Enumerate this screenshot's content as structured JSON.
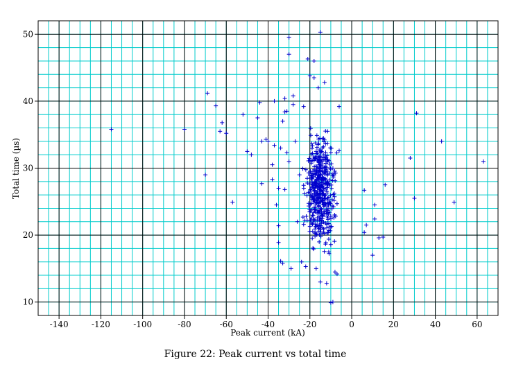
{
  "chart_data": {
    "type": "scatter",
    "title": "",
    "caption": "Figure 22: Peak current vs total time",
    "xlabel": "Peak current (kA)",
    "ylabel": "Total time (µs)",
    "xlim": [
      -150,
      70
    ],
    "ylim": [
      8,
      52
    ],
    "x_ticks": [
      -140,
      -120,
      -100,
      -80,
      -60,
      -40,
      -20,
      0,
      20,
      40,
      60
    ],
    "y_ticks": [
      10,
      20,
      30,
      40,
      50
    ],
    "x_minor_step": 5,
    "y_minor_step": 2,
    "grid": true,
    "marker": "+",
    "colors": {
      "marker": "#0000cc",
      "minor_grid": "#00cccc",
      "major_grid": "#000000",
      "axes": "#000000"
    },
    "cluster": {
      "description_points": "dense band approx. x from -25 to -5 kA, y from 15 to 38 µs",
      "x_range": [
        -25,
        -5
      ],
      "y_range": [
        15,
        38
      ],
      "count": 500
    },
    "points": [
      [
        -115,
        35.8
      ],
      [
        -80,
        35.8
      ],
      [
        -70,
        29
      ],
      [
        -69,
        41.2
      ],
      [
        -65,
        39.3
      ],
      [
        -63,
        35.5
      ],
      [
        -62,
        36.8
      ],
      [
        -60,
        35.2
      ],
      [
        -57,
        24.9
      ],
      [
        -52,
        38
      ],
      [
        -50,
        32.5
      ],
      [
        -48,
        32
      ],
      [
        -45,
        37.5
      ],
      [
        -44,
        39.8
      ],
      [
        -43,
        34
      ],
      [
        -43,
        27.7
      ],
      [
        -41,
        34.3
      ],
      [
        -40,
        34
      ],
      [
        -38,
        28.3
      ],
      [
        -38,
        30.5
      ],
      [
        -37,
        40
      ],
      [
        -37,
        33.4
      ],
      [
        -36,
        24.5
      ],
      [
        -35,
        18.9
      ],
      [
        -35,
        21.4
      ],
      [
        -35,
        27
      ],
      [
        -34,
        33
      ],
      [
        -34,
        16.1
      ],
      [
        -33,
        15.8
      ],
      [
        -33,
        37
      ],
      [
        -32,
        38.4
      ],
      [
        -32,
        40.4
      ],
      [
        -32,
        26.8
      ],
      [
        -31,
        32.3
      ],
      [
        -31,
        38.5
      ],
      [
        -30,
        49.5
      ],
      [
        -30,
        47
      ],
      [
        -30,
        31
      ],
      [
        -29,
        15
      ],
      [
        -28,
        40.8
      ],
      [
        -28,
        39.5
      ],
      [
        -27,
        34
      ],
      [
        -26,
        22
      ],
      [
        -25,
        29
      ],
      [
        -24,
        16
      ],
      [
        -23,
        39.2
      ],
      [
        -22,
        15.3
      ],
      [
        -21,
        46.3
      ],
      [
        -20,
        43.8
      ],
      [
        -18,
        46
      ],
      [
        -18,
        43.5
      ],
      [
        -17,
        15
      ],
      [
        -16,
        42
      ],
      [
        -15,
        50.3
      ],
      [
        -15,
        13
      ],
      [
        -13,
        42.8
      ],
      [
        -12,
        12.8
      ],
      [
        -11,
        17.5
      ],
      [
        -10,
        9.9
      ],
      [
        -9,
        10
      ],
      [
        -6,
        39.2
      ],
      [
        -6,
        32.6
      ],
      [
        -7,
        14.2
      ],
      [
        -8,
        14.5
      ],
      [
        6,
        26.7
      ],
      [
        6,
        20.4
      ],
      [
        7,
        21.5
      ],
      [
        10,
        17
      ],
      [
        11,
        24.5
      ],
      [
        11,
        22.4
      ],
      [
        13,
        19.6
      ],
      [
        15,
        19.7
      ],
      [
        16,
        27.5
      ],
      [
        28,
        31.5
      ],
      [
        30,
        25.5
      ],
      [
        31,
        38.2
      ],
      [
        43,
        34
      ],
      [
        49,
        24.9
      ],
      [
        63,
        31
      ]
    ]
  }
}
